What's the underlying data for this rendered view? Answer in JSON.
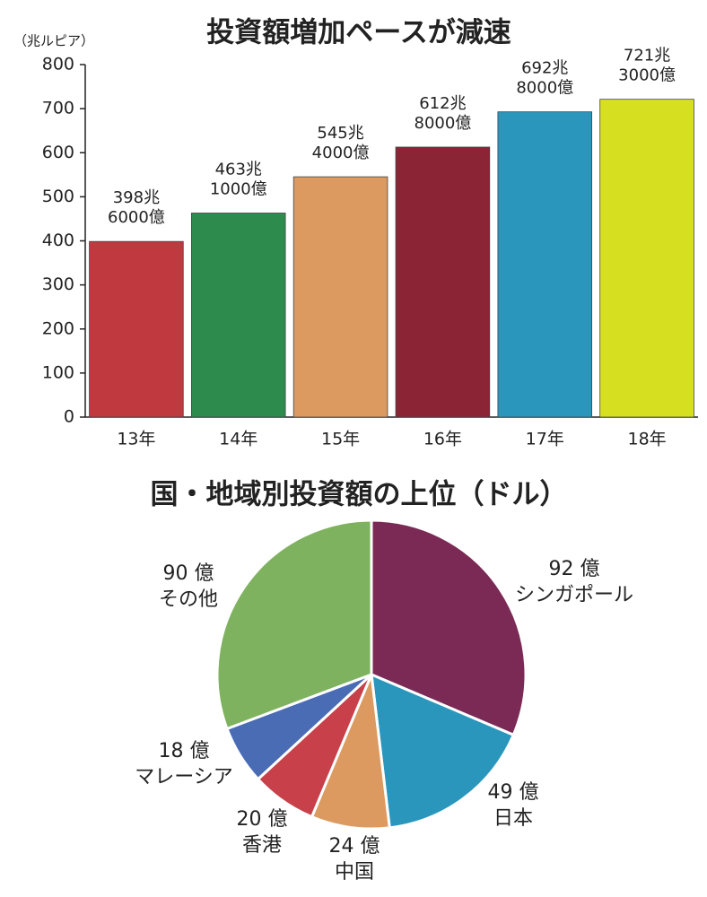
{
  "chart_data": [
    {
      "type": "bar",
      "title": "投資額増加ペースが減速",
      "y_label": "（兆ルピア）",
      "categories": [
        "13年",
        "14年",
        "15年",
        "16年",
        "17年",
        "18年"
      ],
      "values": [
        398.6,
        463.1,
        545.4,
        612.8,
        692.8,
        721.3
      ],
      "value_labels": [
        "398兆\n6000億",
        "463兆\n1000億",
        "545兆\n4000億",
        "612兆\n8000億",
        "692兆\n8000億",
        "721兆\n3000億"
      ],
      "colors": [
        "#c0393f",
        "#2e8b4e",
        "#dc9a60",
        "#8b2535",
        "#2a96bc",
        "#d7e020"
      ],
      "ylim": [
        0,
        800
      ],
      "yticks": [
        0,
        100,
        200,
        300,
        400,
        500,
        600,
        700,
        800
      ]
    },
    {
      "type": "pie",
      "title": "国・地域別投資額の上位（ドル）",
      "categories": [
        "シンガポール",
        "日本",
        "中国",
        "香港",
        "マレーシア",
        "その他"
      ],
      "values": [
        92,
        49,
        24,
        20,
        18,
        90
      ],
      "value_labels": [
        "92 億",
        "49 億",
        "24 億",
        "20 億",
        "18 億",
        "90 億"
      ],
      "colors": [
        "#7a2a55",
        "#2a96bc",
        "#dc9a60",
        "#c7404a",
        "#4a6cb5",
        "#7fb25f"
      ]
    }
  ]
}
